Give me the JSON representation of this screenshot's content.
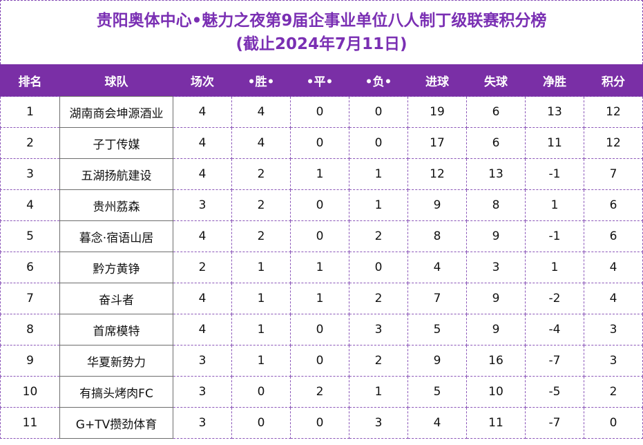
{
  "title": {
    "line1": "贵阳奥体中心•魅力之夜第9届企事业单位八人制丁级联赛积分榜",
    "line2": "(截止2024年7月11日)"
  },
  "columns": [
    "排名",
    "球队",
    "场次",
    "•胜•",
    "•平•",
    "•负•",
    "进球",
    "失球",
    "净胜",
    "积分"
  ],
  "rows": [
    [
      "1",
      "湖南商会坤源酒业",
      "4",
      "4",
      "0",
      "0",
      "19",
      "6",
      "13",
      "12"
    ],
    [
      "2",
      "子丁传媒",
      "4",
      "4",
      "0",
      "0",
      "17",
      "6",
      "11",
      "12"
    ],
    [
      "3",
      "五湖扬航建设",
      "4",
      "2",
      "1",
      "1",
      "12",
      "13",
      "-1",
      "7"
    ],
    [
      "4",
      "贵州荔森",
      "3",
      "2",
      "0",
      "1",
      "9",
      "8",
      "1",
      "6"
    ],
    [
      "5",
      "暮念·宿语山居",
      "4",
      "2",
      "0",
      "2",
      "8",
      "9",
      "-1",
      "6"
    ],
    [
      "6",
      "黔方黄铮",
      "2",
      "1",
      "1",
      "0",
      "4",
      "3",
      "1",
      "4"
    ],
    [
      "7",
      "奋斗者",
      "4",
      "1",
      "1",
      "2",
      "7",
      "9",
      "-2",
      "4"
    ],
    [
      "8",
      "首席模特",
      "4",
      "1",
      "0",
      "3",
      "5",
      "9",
      "-4",
      "3"
    ],
    [
      "9",
      "华夏新势力",
      "3",
      "1",
      "0",
      "2",
      "9",
      "16",
      "-7",
      "3"
    ],
    [
      "10",
      "有搞头烤肉FC",
      "3",
      "0",
      "2",
      "1",
      "5",
      "10",
      "-5",
      "2"
    ],
    [
      "11",
      "G+TV攒劲体育",
      "3",
      "0",
      "0",
      "3",
      "4",
      "11",
      "-7",
      "0"
    ]
  ],
  "colors": {
    "header_bg": "#7a2fa6",
    "title_text": "#7a2fb3"
  }
}
